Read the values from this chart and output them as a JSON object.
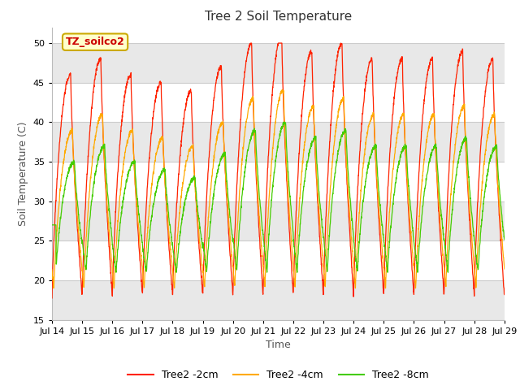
{
  "title": "Tree 2 Soil Temperature",
  "xlabel": "Time",
  "ylabel": "Soil Temperature (C)",
  "ylim": [
    15,
    52
  ],
  "annotation": "TZ_soilco2",
  "annotation_color": "#cc0000",
  "annotation_bg": "#ffffcc",
  "annotation_border": "#ccaa00",
  "fig_bg": "#ffffff",
  "plot_bg": "#ffffff",
  "line_colors": {
    "2cm": "#ff2200",
    "4cm": "#ffaa00",
    "8cm": "#44cc00"
  },
  "legend_labels": [
    "Tree2 -2cm",
    "Tree2 -4cm",
    "Tree2 -8cm"
  ],
  "x_tick_labels": [
    "Jul 14",
    "Jul 15",
    "Jul 16",
    "Jul 17",
    "Jul 18",
    "Jul 19",
    "Jul 20",
    "Jul 21",
    "Jul 22",
    "Jul 23",
    "Jul 24",
    "Jul 25",
    "Jul 26",
    "Jul 27",
    "Jul 28",
    "Jul 29"
  ],
  "grid_color": "#dddddd",
  "band_color": "#e8e8e8",
  "title_fontsize": 11,
  "axis_fontsize": 8,
  "label_fontsize": 9
}
